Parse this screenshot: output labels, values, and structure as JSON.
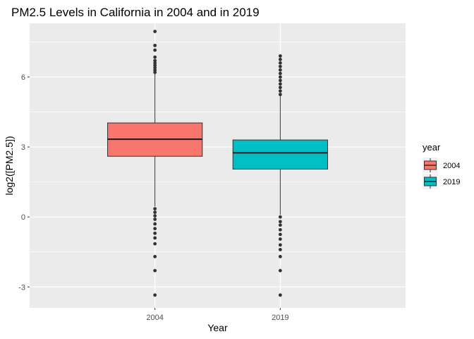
{
  "chart_data": {
    "type": "box",
    "title": "PM2.5 Levels in California in 2004 and in 2019",
    "xlabel": "Year",
    "ylabel": "log2([PM2.5])",
    "categories": [
      "2004",
      "2019"
    ],
    "ylim": [
      -3.9,
      8.3
    ],
    "yticks": [
      -3,
      0,
      3,
      6
    ],
    "ytick_labels": [
      "-3",
      "0",
      "3",
      "6"
    ],
    "grid": true,
    "legend": {
      "title": "year",
      "position": "right",
      "entries": [
        {
          "label": "2004",
          "color": "#f8766d"
        },
        {
          "label": "2019",
          "color": "#00bfc4"
        }
      ]
    },
    "series": [
      {
        "name": "2004",
        "color": "#f8766d",
        "q1": 2.6,
        "median": 3.33,
        "q3": 4.03,
        "whisker_low": 0.45,
        "whisker_high": 6.15,
        "outliers_high": [
          6.2,
          6.3,
          6.4,
          6.5,
          6.6,
          6.7,
          6.85,
          7.15,
          7.35,
          7.95
        ],
        "outliers_low": [
          0.35,
          0.2,
          0.05,
          -0.1,
          -0.3,
          -0.5,
          -0.7,
          -0.9,
          -1.15,
          -1.7,
          -2.3,
          -3.35
        ]
      },
      {
        "name": "2019",
        "color": "#00bfc4",
        "q1": 2.05,
        "median": 2.75,
        "q3": 3.3,
        "whisker_low": 0.1,
        "whisker_high": 5.2,
        "outliers_high": [
          5.25,
          5.4,
          5.55,
          5.7,
          5.85,
          6.0,
          6.15,
          6.3,
          6.45,
          6.6,
          6.75,
          6.9
        ],
        "outliers_low": [
          0.0,
          -0.2,
          -0.35,
          -0.55,
          -0.75,
          -0.95,
          -1.2,
          -1.4,
          -1.7,
          -2.3,
          -3.35
        ]
      }
    ]
  }
}
